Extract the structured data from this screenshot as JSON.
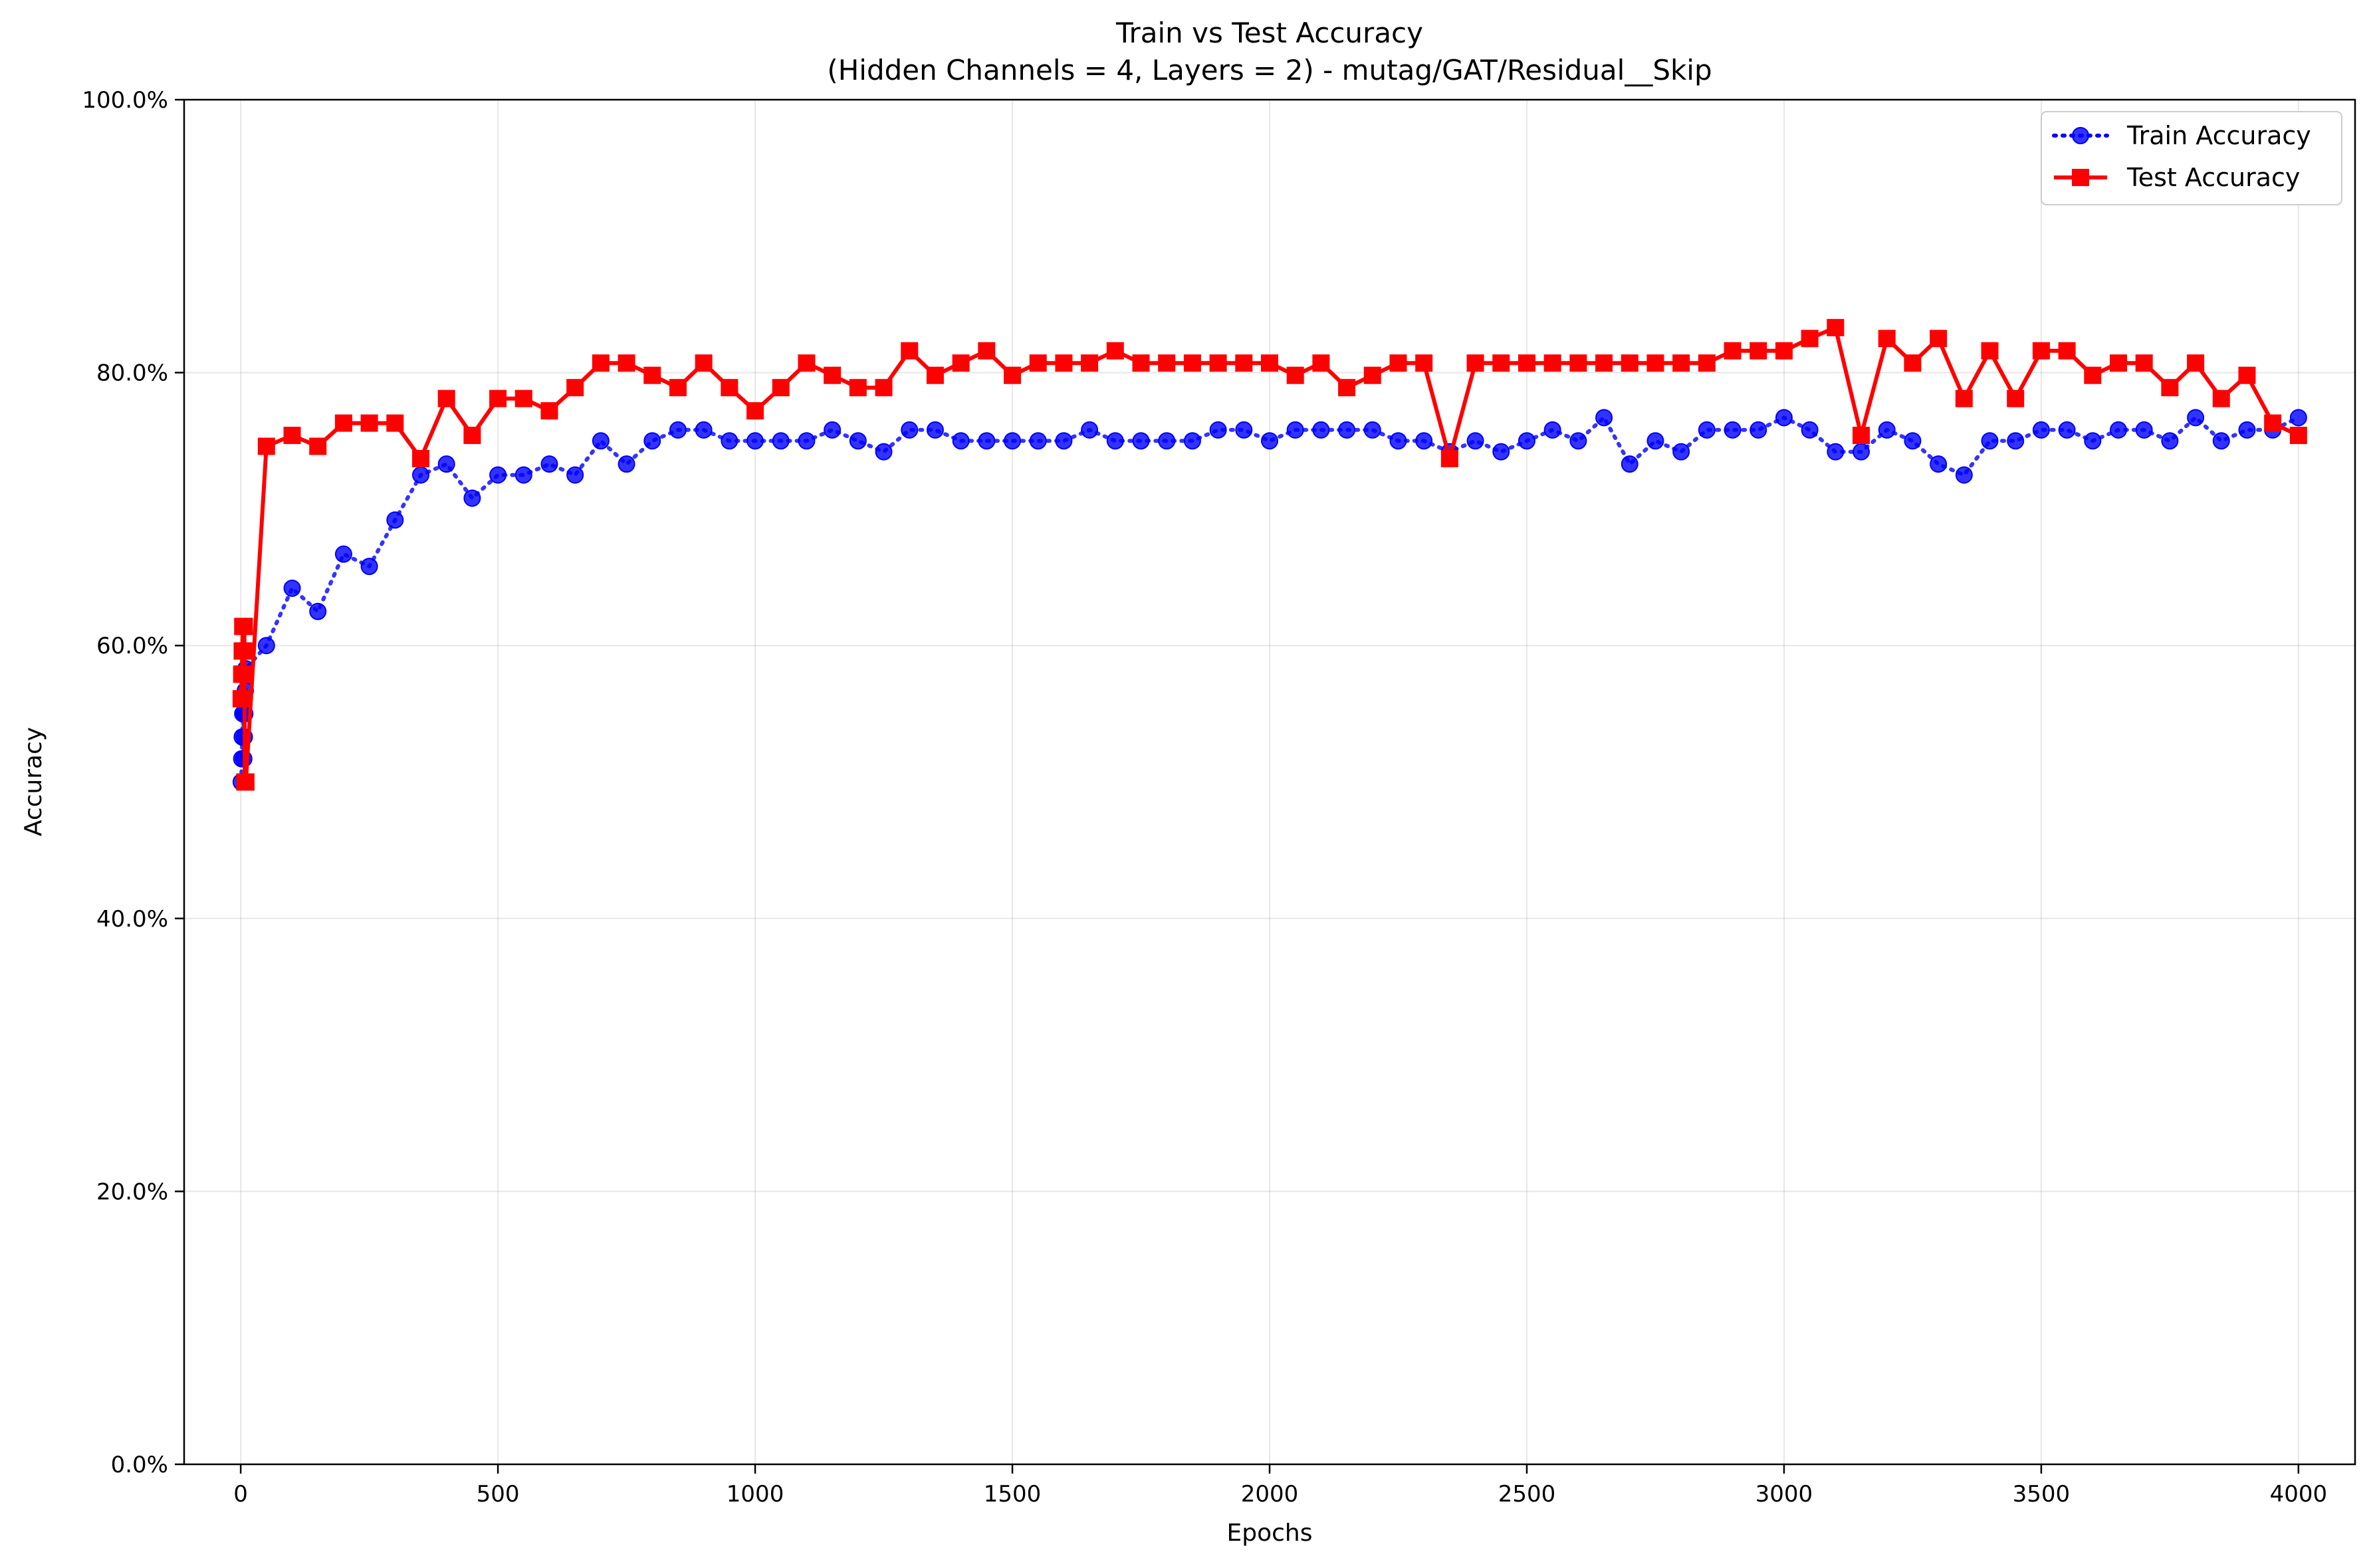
{
  "chart_data": {
    "type": "line",
    "title": "Train vs Test Accuracy",
    "subtitle": "(Hidden Channels = 4, Layers = 2) - mutag/GAT/Residual__Skip",
    "xlabel": "Epochs",
    "ylabel": "Accuracy",
    "xlim": [
      -110,
      4110
    ],
    "ylim": [
      0,
      1
    ],
    "xticks": [
      0,
      500,
      1000,
      1500,
      2000,
      2500,
      3000,
      3500,
      4000
    ],
    "yticks": [
      0,
      0.2,
      0.4,
      0.6,
      0.8,
      1.0
    ],
    "xtick_labels": [
      "0",
      "500",
      "1000",
      "1500",
      "2000",
      "2500",
      "3000",
      "3500",
      "4000"
    ],
    "ytick_labels": [
      "0.0%",
      "20.0%",
      "40.0%",
      "60.0%",
      "80.0%",
      "100.0%"
    ],
    "grid": true,
    "legend_position": "top-right",
    "series": [
      {
        "name": "Train Accuracy",
        "color": "#0000ff",
        "style": "dotted",
        "marker": "circle",
        "x": [
          1,
          2,
          3,
          4,
          5,
          6,
          7,
          8,
          9,
          10,
          50,
          100,
          150,
          200,
          250,
          300,
          350,
          400,
          450,
          500,
          550,
          600,
          650,
          700,
          750,
          800,
          850,
          900,
          950,
          1000,
          1050,
          1100,
          1150,
          1200,
          1250,
          1300,
          1350,
          1400,
          1450,
          1500,
          1550,
          1600,
          1650,
          1700,
          1750,
          1800,
          1850,
          1900,
          1950,
          2000,
          2050,
          2100,
          2150,
          2200,
          2250,
          2300,
          2350,
          2400,
          2450,
          2500,
          2550,
          2600,
          2650,
          2700,
          2750,
          2800,
          2850,
          2900,
          2950,
          3000,
          3050,
          3100,
          3150,
          3200,
          3250,
          3300,
          3350,
          3400,
          3450,
          3500,
          3550,
          3600,
          3650,
          3700,
          3750,
          3800,
          3850,
          3900,
          3950,
          4000
        ],
        "y": [
          0.5,
          0.517,
          0.533,
          0.55,
          0.55,
          0.517,
          0.533,
          0.55,
          0.567,
          0.583,
          0.6,
          0.642,
          0.625,
          0.667,
          0.658,
          0.692,
          0.725,
          0.733,
          0.708,
          0.725,
          0.725,
          0.733,
          0.725,
          0.75,
          0.733,
          0.75,
          0.758,
          0.758,
          0.75,
          0.75,
          0.75,
          0.75,
          0.758,
          0.75,
          0.742,
          0.758,
          0.758,
          0.75,
          0.75,
          0.75,
          0.75,
          0.75,
          0.758,
          0.75,
          0.75,
          0.75,
          0.75,
          0.758,
          0.758,
          0.75,
          0.758,
          0.758,
          0.758,
          0.758,
          0.75,
          0.75,
          0.742,
          0.75,
          0.742,
          0.75,
          0.758,
          0.75,
          0.767,
          0.733,
          0.75,
          0.742,
          0.758,
          0.758,
          0.758,
          0.767,
          0.758,
          0.742,
          0.742,
          0.758,
          0.75,
          0.733,
          0.725,
          0.75,
          0.75,
          0.758,
          0.758,
          0.75,
          0.758,
          0.758,
          0.75,
          0.767,
          0.75,
          0.758,
          0.758,
          0.767
        ]
      },
      {
        "name": "Test Accuracy",
        "color": "#ff0000",
        "style": "solid",
        "marker": "square",
        "x": [
          1,
          2,
          3,
          4,
          5,
          6,
          7,
          8,
          9,
          10,
          50,
          100,
          150,
          200,
          250,
          300,
          350,
          400,
          450,
          500,
          550,
          600,
          650,
          700,
          750,
          800,
          850,
          900,
          950,
          1000,
          1050,
          1100,
          1150,
          1200,
          1250,
          1300,
          1350,
          1400,
          1450,
          1500,
          1550,
          1600,
          1650,
          1700,
          1750,
          1800,
          1850,
          1900,
          1950,
          2000,
          2050,
          2100,
          2150,
          2200,
          2250,
          2300,
          2350,
          2400,
          2450,
          2500,
          2550,
          2600,
          2650,
          2700,
          2750,
          2800,
          2850,
          2900,
          2950,
          3000,
          3050,
          3100,
          3150,
          3200,
          3250,
          3300,
          3350,
          3400,
          3450,
          3500,
          3550,
          3600,
          3650,
          3700,
          3750,
          3800,
          3850,
          3900,
          3950,
          4000
        ],
        "y": [
          0.561,
          0.579,
          0.596,
          0.614,
          0.579,
          0.596,
          0.614,
          0.5,
          0.5,
          0.5,
          0.746,
          0.754,
          0.746,
          0.763,
          0.763,
          0.763,
          0.737,
          0.781,
          0.754,
          0.781,
          0.781,
          0.772,
          0.789,
          0.807,
          0.807,
          0.798,
          0.789,
          0.807,
          0.789,
          0.772,
          0.789,
          0.807,
          0.798,
          0.789,
          0.789,
          0.816,
          0.798,
          0.807,
          0.816,
          0.798,
          0.807,
          0.807,
          0.807,
          0.816,
          0.807,
          0.807,
          0.807,
          0.807,
          0.807,
          0.807,
          0.798,
          0.807,
          0.789,
          0.798,
          0.807,
          0.807,
          0.737,
          0.807,
          0.807,
          0.807,
          0.807,
          0.807,
          0.807,
          0.807,
          0.807,
          0.807,
          0.807,
          0.816,
          0.816,
          0.816,
          0.825,
          0.833,
          0.754,
          0.825,
          0.807,
          0.825,
          0.781,
          0.816,
          0.781,
          0.816,
          0.816,
          0.798,
          0.807,
          0.807,
          0.789,
          0.807,
          0.781,
          0.798,
          0.763,
          0.754
        ]
      }
    ]
  }
}
